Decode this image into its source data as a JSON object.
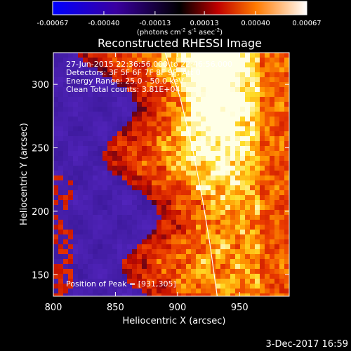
{
  "chart_data": {
    "type": "heatmap",
    "title": "Reconstructed RHESSI Image",
    "xlabel": "Heliocentric X (arcsec)",
    "ylabel": "Heliocentric Y (arcsec)",
    "xlim": [
      800,
      990
    ],
    "ylim": [
      133,
      325
    ],
    "xticks": [
      "800",
      "850",
      "900",
      "950"
    ],
    "yticks": [
      "150",
      "200",
      "250",
      "300"
    ],
    "xtick_values": [
      800,
      850,
      900,
      950
    ],
    "ytick_values": [
      150,
      200,
      250,
      300
    ],
    "colorbar": {
      "ticks": [
        "-0.00067",
        "-0.00040",
        "-0.00013",
        "0.00013",
        "0.00040",
        "0.00067"
      ],
      "tick_values": [
        -0.00067,
        -0.0004,
        -0.00013,
        0.00013,
        0.0004,
        0.00067
      ],
      "range": [
        -0.00067,
        0.00067
      ],
      "unit_parts": [
        "(photons cm",
        "-2",
        " s",
        "-1",
        " asec",
        "-2",
        ")"
      ]
    },
    "annotations": [
      "27-Jun-2015 22:36:56.000 to 22:46:56.000",
      "Detectors: 3F 5F 6F 7F 8F 9F, Att 0",
      "Energy Range: 25.0 - 50.0 keV",
      "Clean     Total counts: 3.81E+04"
    ],
    "peak_label": "Position of Peak = [931,305]",
    "peak": [
      931,
      305
    ],
    "limb_curve": [
      [
        890,
        325
      ],
      [
        902,
        290
      ],
      [
        912,
        250
      ],
      [
        920,
        210
      ],
      [
        926,
        175
      ],
      [
        932,
        133
      ]
    ],
    "colors": {
      "cold": "#4a1fb8",
      "hot": "#ffffff",
      "limb": "#ffffff"
    }
  },
  "footer": {
    "date": "3-Dec-2017 16:59"
  }
}
